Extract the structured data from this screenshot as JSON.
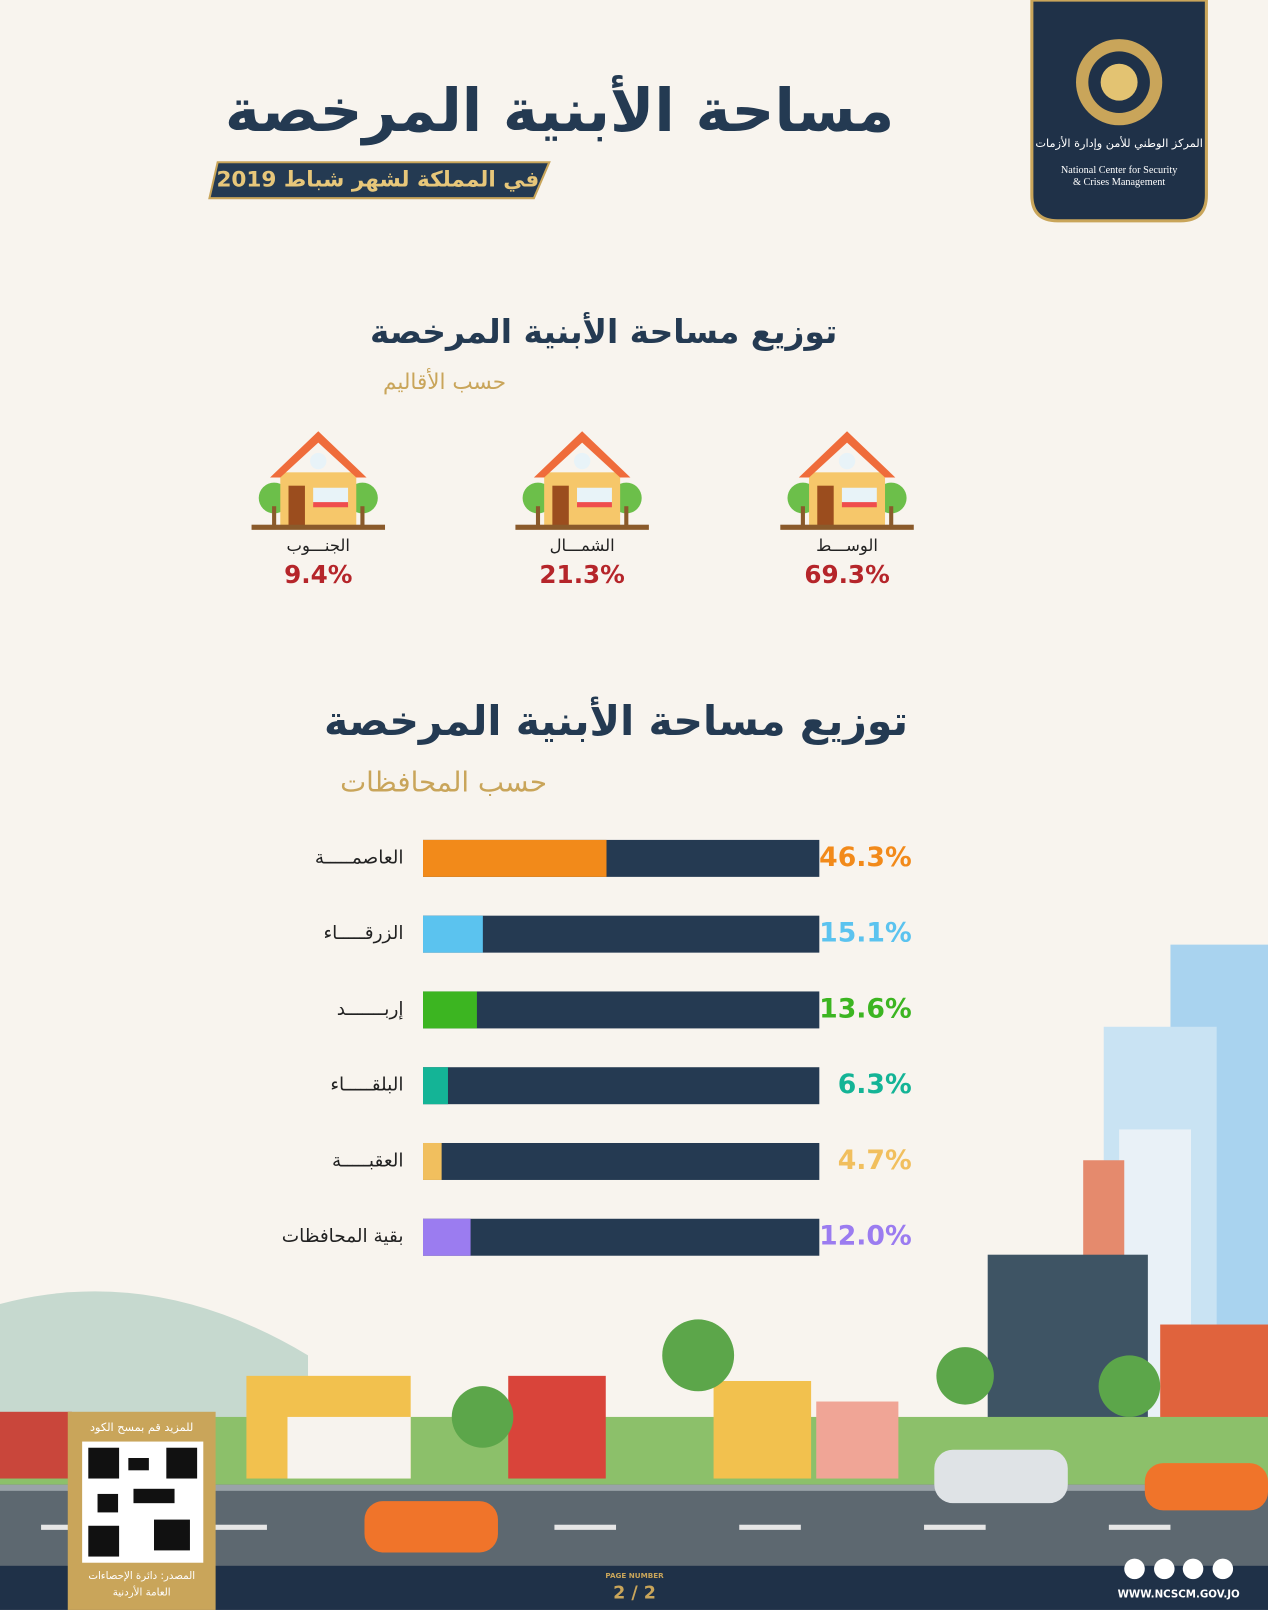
{
  "header": {
    "title": "مساحة الأبنية المرخصة",
    "subtitle": "في المملكة لشهر شباط 2019",
    "logo_arabic": "المركز الوطني للأمن وإدارة الأزمات",
    "logo_english_1": "National Center for Security",
    "logo_english_2": "& Crises Management"
  },
  "chart_data": [
    {
      "type": "icons",
      "title": "توزيع مساحة الأبنية المرخصة",
      "subtitle": "حسب الأقاليم",
      "categories": [
        "الوســـط",
        "الشمـــال",
        "الجنـــوب"
      ],
      "values": [
        69.3,
        21.3,
        9.4
      ],
      "value_labels": [
        "69.3%",
        "21.3%",
        "9.4%"
      ],
      "color": "#b5252a"
    },
    {
      "type": "hbar",
      "title": "توزيع مساحة الأبنية المرخصة",
      "subtitle": "حسب المحافظات",
      "categories": [
        "العاصمـــــة",
        "الزرقـــــاء",
        "إربـــــــد",
        "البلقـــــاء",
        "العقبـــــة",
        "بقية المحافظات"
      ],
      "values": [
        46.3,
        15.1,
        13.6,
        6.3,
        4.7,
        12.0
      ],
      "value_labels": [
        "46.3%",
        "15.1%",
        "13.6%",
        "6.3%",
        "4.7%",
        "12.0%"
      ],
      "colors": [
        "#f28a1a",
        "#5bc3ef",
        "#3cb521",
        "#14b496",
        "#f1bf5e",
        "#9b7cf0"
      ],
      "track_color": "#253a52",
      "xlim": [
        0,
        100
      ]
    }
  ],
  "footer": {
    "qr_caption": "للمزيد قم بمسح الكود",
    "source_1": "المصدر: دائرة الإحصاءات",
    "source_2": "العامة الأردنية",
    "page_caption": "PAGE NUMBER",
    "page": "2 / 2",
    "website": "WWW.NCSCM.GOV.JO"
  }
}
